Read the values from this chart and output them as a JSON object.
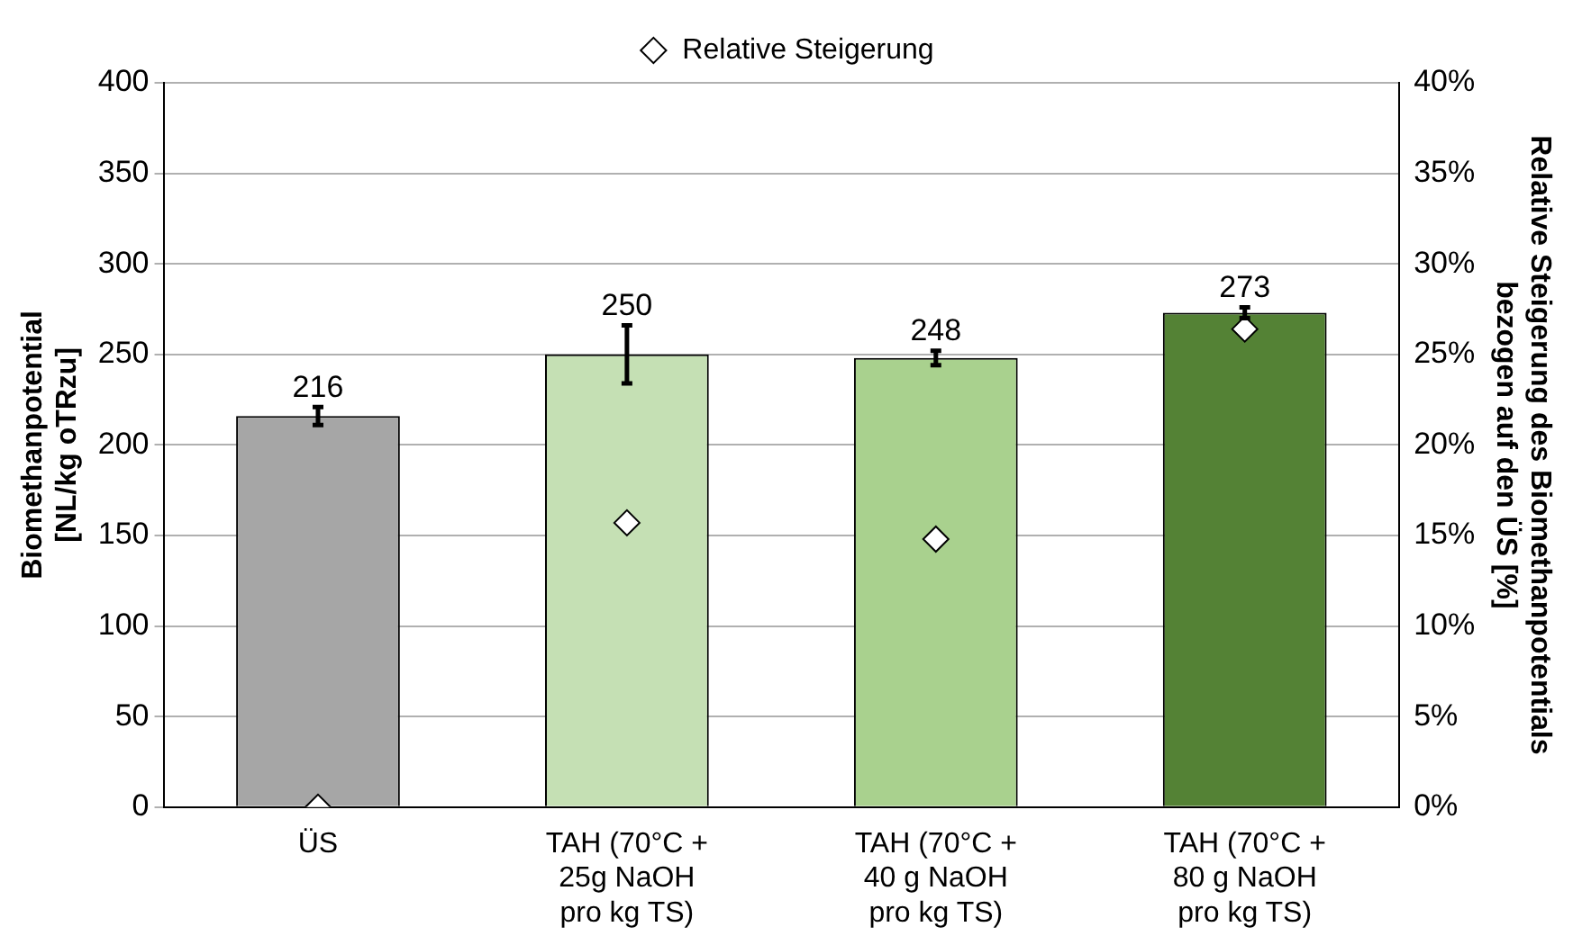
{
  "chart_data": {
    "type": "bar",
    "categories": [
      "ÜS",
      "TAH (70°C +\n25g NaOH\npro kg TS)",
      "TAH (70°C +\n40 g NaOH\npro kg TS)",
      "TAH (70°C +\n80 g NaOH\npro kg TS)"
    ],
    "ylabel": "Biomethanpotential\n[NL/kg oTRzu]",
    "y2label": "Relative Steigerung des Biomethanpotentials\nbezogen auf den ÜS [%]",
    "ylim": [
      0,
      400
    ],
    "yticks": [
      0,
      50,
      100,
      150,
      200,
      250,
      300,
      350,
      400
    ],
    "y2lim": [
      0,
      40
    ],
    "y2ticks": [
      {
        "value": 0,
        "label": "0%"
      },
      {
        "value": 5,
        "label": "5%"
      },
      {
        "value": 10,
        "label": "10%"
      },
      {
        "value": 15,
        "label": "15%"
      },
      {
        "value": 20,
        "label": "20%"
      },
      {
        "value": 25,
        "label": "25%"
      },
      {
        "value": 30,
        "label": "30%"
      },
      {
        "value": 35,
        "label": "35%"
      },
      {
        "value": 40,
        "label": "40%"
      }
    ],
    "grid": "y",
    "legend": "top",
    "series": [
      {
        "colors": [
          "#a6a6a6",
          "#c5e0b4",
          "#a9d18e",
          "#548235"
        ],
        "values": [
          216,
          250,
          248,
          273
        ],
        "errors": [
          5,
          16,
          4,
          3
        ],
        "value_labels": [
          "216",
          "250",
          "248",
          "273"
        ]
      },
      {
        "type": "scatter",
        "name": "Relative Steigerung",
        "color": "#ffffff",
        "marker": "diamond",
        "axis": "y2",
        "x": [
          "ÜS",
          "TAH (70°C +\n25g NaOH\npro kg TS)",
          "TAH (70°C +\n40 g NaOH\npro kg TS)",
          "TAH (70°C +\n80 g NaOH\npro kg TS)"
        ],
        "values": [
          0,
          15.7,
          14.8,
          26.4
        ]
      }
    ]
  }
}
